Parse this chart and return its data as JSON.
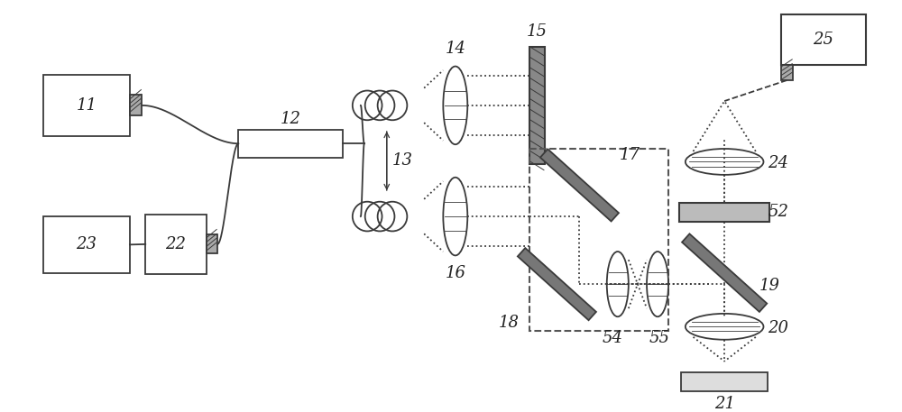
{
  "bg_color": "#ffffff",
  "lc": "#3a3a3a",
  "lw": 1.3,
  "fig_width": 10.0,
  "fig_height": 4.57
}
